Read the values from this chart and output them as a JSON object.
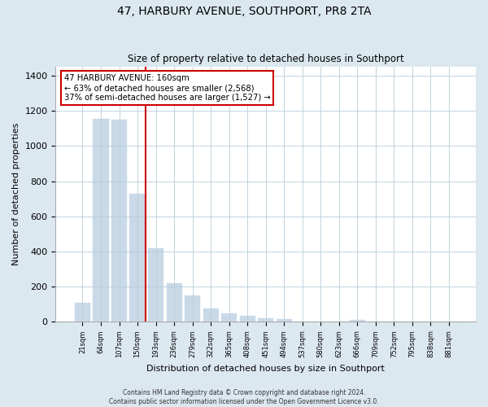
{
  "title": "47, HARBURY AVENUE, SOUTHPORT, PR8 2TA",
  "subtitle": "Size of property relative to detached houses in Southport",
  "xlabel": "Distribution of detached houses by size in Southport",
  "ylabel": "Number of detached properties",
  "bar_labels": [
    "21sqm",
    "64sqm",
    "107sqm",
    "150sqm",
    "193sqm",
    "236sqm",
    "279sqm",
    "322sqm",
    "365sqm",
    "408sqm",
    "451sqm",
    "494sqm",
    "537sqm",
    "580sqm",
    "623sqm",
    "666sqm",
    "709sqm",
    "752sqm",
    "795sqm",
    "838sqm",
    "881sqm"
  ],
  "bar_values": [
    110,
    1155,
    1150,
    730,
    420,
    220,
    150,
    75,
    50,
    35,
    20,
    15,
    0,
    0,
    0,
    10,
    0,
    0,
    0,
    0,
    0
  ],
  "bar_color": "#c9d9e8",
  "marker_index": 3,
  "marker_color": "#cc0000",
  "ylim": [
    0,
    1450
  ],
  "yticks": [
    0,
    200,
    400,
    600,
    800,
    1000,
    1200,
    1400
  ],
  "annotation_title": "47 HARBURY AVENUE: 160sqm",
  "annotation_line1": "← 63% of detached houses are smaller (2,568)",
  "annotation_line2": "37% of semi-detached houses are larger (1,527) →",
  "annotation_box_color": "#ffffff",
  "annotation_border_color": "#cc0000",
  "footer_line1": "Contains HM Land Registry data © Crown copyright and database right 2024.",
  "footer_line2": "Contains public sector information licensed under the Open Government Licence v3.0.",
  "bg_color": "#dce8f0",
  "plot_bg_color": "#ffffff",
  "grid_color": "#b8ccd8"
}
